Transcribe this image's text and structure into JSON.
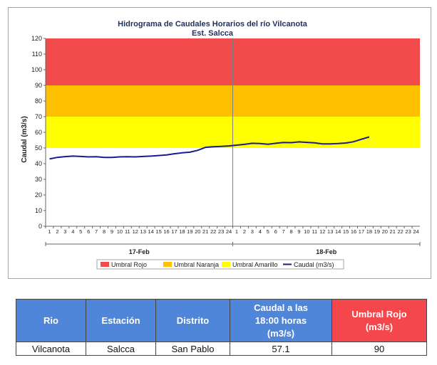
{
  "chart_data": {
    "type": "line",
    "title": "Hidrograma de Caudales Horarios del río Vilcanota",
    "subtitle": "Est. Salcca",
    "ylabel": "Caudal  (m3/s)",
    "ylim": [
      0,
      120
    ],
    "yticks": [
      0,
      10,
      20,
      30,
      40,
      50,
      60,
      70,
      80,
      90,
      100,
      110,
      120
    ],
    "xticks_day1": [
      "1",
      "2",
      "3",
      "4",
      "5",
      "6",
      "7",
      "8",
      "9",
      "10",
      "11",
      "12",
      "13",
      "14",
      "15",
      "16",
      "17",
      "18",
      "19",
      "20",
      "21",
      "22",
      "23",
      "24"
    ],
    "xticks_day2": [
      "1",
      "2",
      "3",
      "4",
      "5",
      "6",
      "7",
      "8",
      "9",
      "10",
      "11",
      "12",
      "13",
      "14",
      "15",
      "16",
      "17",
      "18",
      "19",
      "20",
      "21",
      "22",
      "23",
      "24"
    ],
    "days": [
      "17-Feb",
      "18-Feb"
    ],
    "thresholds": [
      {
        "name": "Umbral Rojo",
        "from": 90,
        "to": 120,
        "color": "#f24b4b"
      },
      {
        "name": "Umbral Naranja",
        "from": 70,
        "to": 90,
        "color": "#ffc000"
      },
      {
        "name": "Umbral Amarillo",
        "from": 50,
        "to": 70,
        "color": "#ffff00"
      }
    ],
    "series": [
      {
        "name": "Caudal (m3/s)",
        "color": "#1a1a8c",
        "values": [
          43.0,
          44.0,
          44.5,
          44.8,
          44.6,
          44.3,
          44.4,
          44.0,
          44.0,
          44.3,
          44.4,
          44.3,
          44.6,
          44.8,
          45.2,
          45.6,
          46.3,
          46.9,
          47.3,
          48.5,
          50.4,
          50.8,
          51.0,
          51.3,
          51.8,
          52.3,
          53.0,
          52.8,
          52.4,
          53.0,
          53.5,
          53.4,
          53.9,
          53.6,
          53.3,
          52.6,
          52.6,
          52.8,
          53.2,
          54.0,
          55.6,
          57.1
        ],
        "legend": "Caudal (m3/s)"
      }
    ],
    "legend": [
      "Umbral Rojo",
      "Umbral Naranja",
      "Umbral Amarillo",
      "Caudal (m3/s)"
    ],
    "legend_position": "bottom"
  },
  "table": {
    "headers": {
      "rio": "Rio",
      "estacion": "Estación",
      "distrito": "Distrito",
      "caudal_a": "Caudal a las",
      "caudal_b": "18:00 horas",
      "caudal_unit": "(m3/s)",
      "umbral_a": "Umbral Rojo",
      "umbral_unit": "(m3/s)"
    },
    "row": {
      "rio": "Vilcanota",
      "estacion": "Salcca",
      "distrito": "San Pablo",
      "caudal": "57.1",
      "umbral": "90"
    }
  }
}
